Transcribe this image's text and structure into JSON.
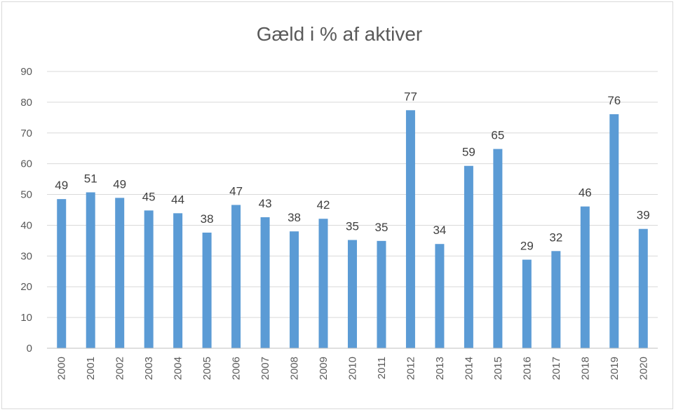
{
  "chart_data": {
    "type": "bar",
    "title": "Gæld i % af aktiver",
    "xlabel": "",
    "ylabel": "",
    "ylim": [
      0,
      90
    ],
    "yticks": [
      0,
      10,
      20,
      30,
      40,
      50,
      60,
      70,
      80,
      90
    ],
    "grid": true,
    "legend": "none",
    "bar_color": "#5b9bd5",
    "categories": [
      "2000",
      "2001",
      "2002",
      "2003",
      "2004",
      "2005",
      "2006",
      "2007",
      "2008",
      "2009",
      "2010",
      "2011",
      "2012",
      "2013",
      "2014",
      "2015",
      "2016",
      "2017",
      "2018",
      "2019",
      "2020"
    ],
    "values": [
      48.5,
      50.7,
      48.9,
      44.8,
      43.9,
      37.6,
      46.6,
      42.6,
      38.0,
      42.1,
      35.2,
      34.9,
      77.4,
      33.9,
      59.3,
      64.8,
      28.8,
      31.6,
      46.1,
      76.1,
      38.8
    ],
    "data_labels": [
      "49",
      "51",
      "49",
      "45",
      "44",
      "38",
      "47",
      "43",
      "38",
      "42",
      "35",
      "35",
      "77",
      "34",
      "59",
      "65",
      "29",
      "32",
      "46",
      "76",
      "39"
    ]
  }
}
